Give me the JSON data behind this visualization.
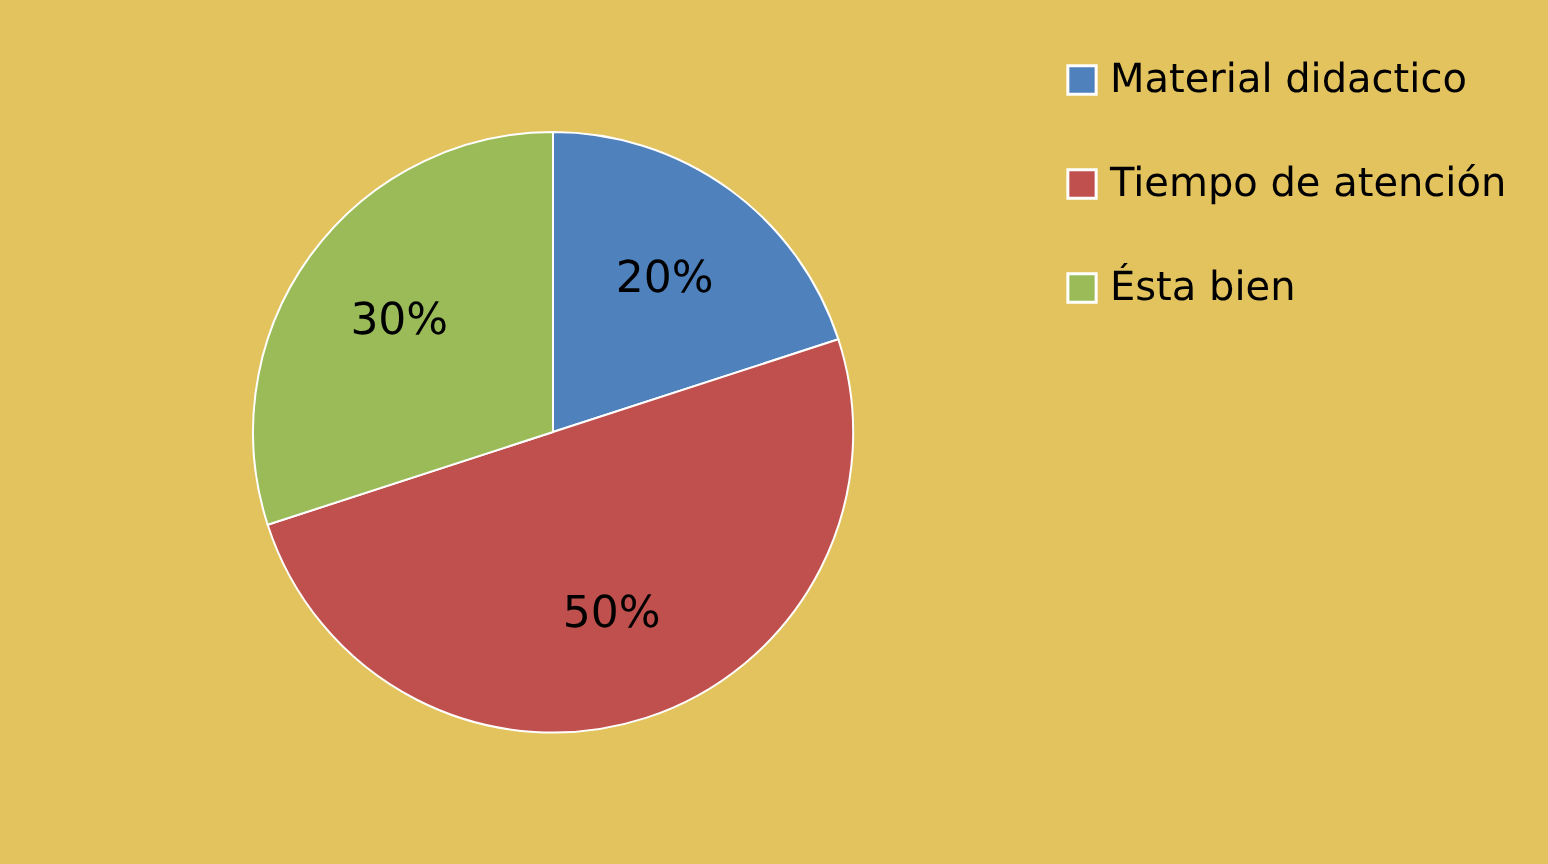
{
  "chart_data": {
    "type": "pie",
    "categories": [
      "Material didactico",
      "Tiempo de atención",
      "Ésta bien"
    ],
    "values": [
      20,
      50,
      30
    ],
    "colors": [
      "#4f81bd",
      "#c0504d",
      "#9bbb59"
    ],
    "value_labels": [
      "20%",
      "50%",
      "30%"
    ],
    "legend": "right"
  }
}
